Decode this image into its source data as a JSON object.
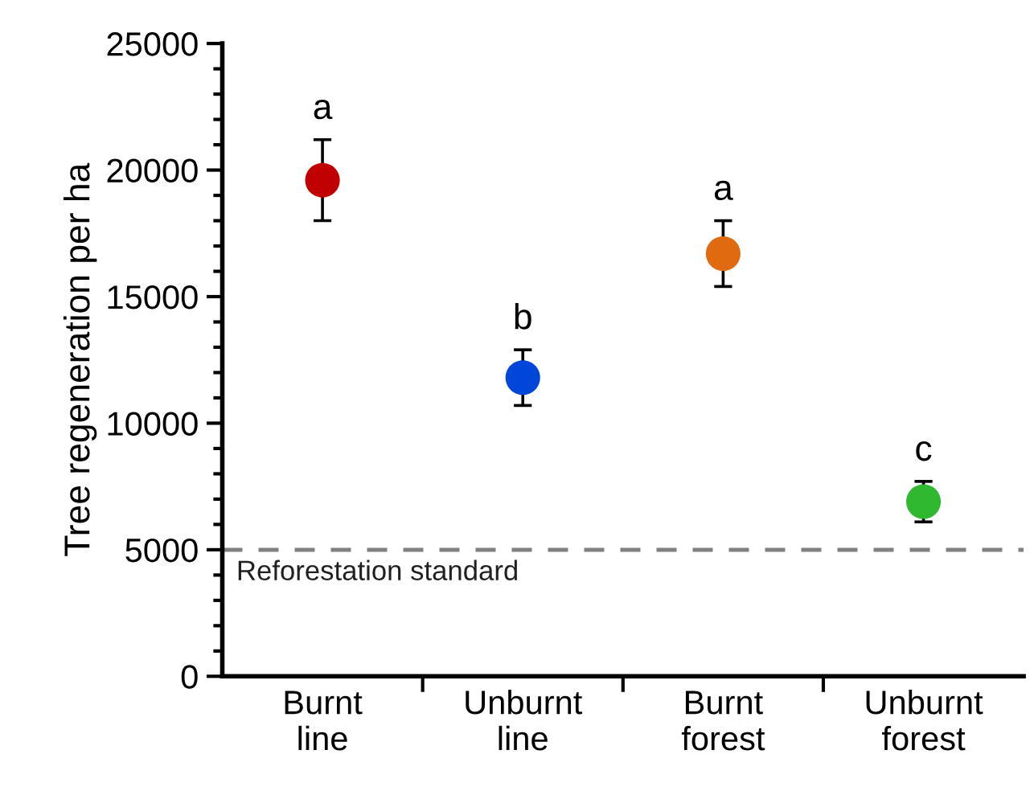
{
  "chart_data": {
    "type": "scatter",
    "ylabel": "Tree regeneration per ha",
    "categories": [
      "Burnt\nline",
      "Unburnt\nline",
      "Burnt\nforest",
      "Unburnt\nforest"
    ],
    "values": [
      19600,
      11800,
      16700,
      6900
    ],
    "colors": [
      "#c00000",
      "#0046d8",
      "#e06a10",
      "#30b830"
    ],
    "errors": [
      [
        18000,
        21200
      ],
      [
        10700,
        12900
      ],
      [
        15400,
        18000
      ],
      [
        6100,
        7700
      ]
    ],
    "ylim": [
      0,
      25000
    ],
    "yticks": [
      0,
      5000,
      10000,
      15000,
      20000,
      25000
    ],
    "grid": false,
    "marker": "circle",
    "ref_lines": [
      {
        "axis": "y",
        "value": 5000,
        "label": "Reforestation standard",
        "color": "#808080",
        "line_style": "dashed"
      }
    ],
    "annotations": [
      "a",
      "b",
      "a",
      "c"
    ]
  }
}
